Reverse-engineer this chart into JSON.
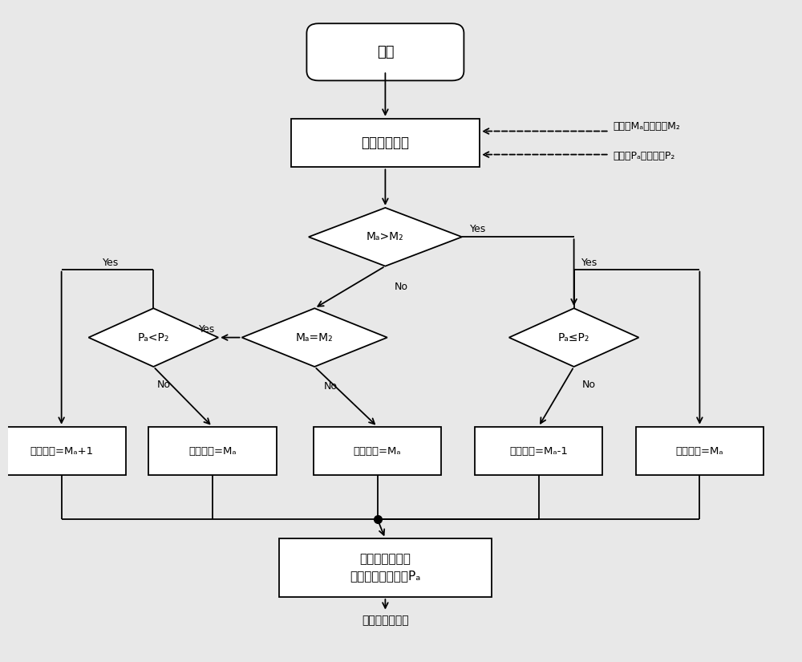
{
  "bg_color": "#e8e8e8",
  "box_color": "#ffffff",
  "border_color": "#000000",
  "text_color": "#000000",
  "arrow_color": "#000000",
  "font_size_large": 13,
  "font_size_med": 11,
  "font_size_small": 10,
  "font_size_tiny": 9,
  "nodes": {
    "start_text": "开始",
    "store_text": "寄存采样信息",
    "d1_text": "Mₐ>M₂",
    "d2_text": "Mₐ=M₂",
    "dleft_text": "Pₐ<P₂",
    "dright_text": "Pₐ≤P₂",
    "b1_text": "码计数值=Mₐ+1",
    "b2_text": "码计数值=Mₐ",
    "b3_text": "码计数值=Mₐ",
    "b4_text": "码计数值=Mₐ-1",
    "b5_text": "码计数值=Mₐ",
    "bottom_line1": "获取去跳周后的",
    "bottom_line2": "码计数值和码相位Pₐ",
    "final_text": "填入下行测量帧",
    "ann1": "码计数Mₐ、码计数M₂",
    "ann2": "码相位Pₐ、码相位P₂"
  }
}
